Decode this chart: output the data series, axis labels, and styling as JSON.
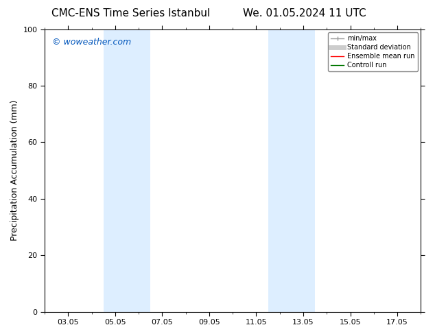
{
  "title_left": "CMC-ENS Time Series Istanbul",
  "title_right": "We. 01.05.2024 11 UTC",
  "ylabel": "Precipitation Accumulation (mm)",
  "xlabel": "",
  "watermark": "© woweather.com",
  "watermark_color": "#0055bb",
  "ylim": [
    0,
    100
  ],
  "yticks": [
    0,
    20,
    40,
    60,
    80,
    100
  ],
  "xtick_labels": [
    "03.05",
    "05.05",
    "07.05",
    "09.05",
    "11.05",
    "13.05",
    "15.05",
    "17.05"
  ],
  "xtick_values": [
    2,
    4,
    6,
    8,
    10,
    12,
    14,
    16
  ],
  "xlim": [
    1,
    17
  ],
  "shaded_bands": [
    {
      "xmin": 3.5,
      "xmax": 5.5,
      "color": "#ddeeff"
    },
    {
      "xmin": 10.5,
      "xmax": 12.5,
      "color": "#ddeeff"
    }
  ],
  "legend_items": [
    {
      "label": "min/max",
      "color": "#999999",
      "lw": 1.0
    },
    {
      "label": "Standard deviation",
      "color": "#cccccc",
      "lw": 5
    },
    {
      "label": "Ensemble mean run",
      "color": "#ff0000",
      "lw": 1.0
    },
    {
      "label": "Controll run",
      "color": "#007700",
      "lw": 1.0
    }
  ],
  "bg_color": "#ffffff",
  "axis_bg_color": "#ffffff",
  "title_fontsize": 11,
  "ylabel_fontsize": 9,
  "tick_fontsize": 8,
  "legend_fontsize": 7,
  "watermark_fontsize": 9
}
